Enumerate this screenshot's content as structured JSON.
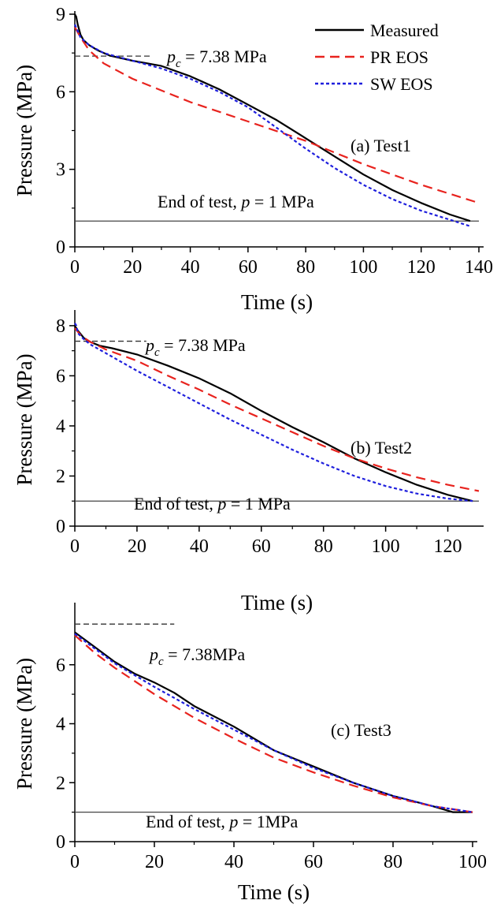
{
  "colors": {
    "measured": "#000000",
    "pr_eos": "#e8231e",
    "sw_eos": "#1f1fdd",
    "critical_line": "#333333",
    "end_line": "#444444"
  },
  "legend": {
    "placement": "top-right of panel (a)",
    "items": [
      {
        "label": "Measured",
        "color": "#000000",
        "dash": "solid"
      },
      {
        "label": "PR EOS",
        "color": "#e8231e",
        "dash": "long-dash"
      },
      {
        "label": "SW EOS",
        "color": "#1f1fdd",
        "dash": "short-dash"
      }
    ]
  },
  "chart_data": [
    {
      "type": "line",
      "panel_label": "(a) Test1",
      "xlabel": "Time (s)",
      "ylabel": "Pressure (MPa)",
      "xlim": [
        0,
        140
      ],
      "ylim": [
        0,
        9
      ],
      "xticks": [
        0,
        20,
        40,
        60,
        80,
        100,
        120,
        140
      ],
      "yticks": [
        0,
        3,
        6,
        9
      ],
      "critical": {
        "pre": "p",
        "sub": "c",
        "post": " = 7.38 MPa",
        "value": 7.38,
        "x_range": [
          0,
          27
        ]
      },
      "end_of_test": {
        "pre": "End of test, ",
        "italic": "p",
        "post": " = 1 MPa",
        "value": 1
      },
      "series": [
        {
          "name": "Measured",
          "x": [
            0,
            0.5,
            1,
            2,
            3,
            5,
            8,
            12,
            20,
            30,
            40,
            50,
            60,
            70,
            80,
            90,
            100,
            110,
            120,
            130,
            137
          ],
          "y": [
            9.0,
            8.9,
            8.6,
            8.2,
            8.0,
            7.8,
            7.6,
            7.4,
            7.2,
            7.0,
            6.6,
            6.1,
            5.5,
            4.9,
            4.2,
            3.5,
            2.8,
            2.2,
            1.7,
            1.25,
            1.0
          ]
        },
        {
          "name": "PR EOS",
          "x": [
            0,
            2,
            5,
            10,
            20,
            40,
            60,
            80,
            100,
            120,
            140
          ],
          "y": [
            8.5,
            8.1,
            7.6,
            7.1,
            6.5,
            5.6,
            4.85,
            4.1,
            3.2,
            2.4,
            1.7
          ]
        },
        {
          "name": "SW EOS",
          "x": [
            0,
            2,
            5,
            10,
            20,
            30,
            40,
            50,
            60,
            70,
            80,
            90,
            100,
            110,
            120,
            130,
            137
          ],
          "y": [
            8.6,
            8.1,
            7.8,
            7.5,
            7.2,
            6.9,
            6.5,
            6.0,
            5.4,
            4.6,
            3.8,
            3.05,
            2.4,
            1.85,
            1.4,
            1.05,
            0.8
          ]
        }
      ]
    },
    {
      "type": "line",
      "panel_label": "(b) Test2",
      "xlabel": "Time (s)",
      "ylabel": "Pressure (MPa)",
      "xlim": [
        0,
        130
      ],
      "ylim": [
        0,
        8.5
      ],
      "xticks": [
        0,
        20,
        40,
        60,
        80,
        100,
        120
      ],
      "yticks": [
        0,
        2,
        4,
        6,
        8
      ],
      "critical": {
        "pre": "p",
        "sub": "c",
        "post": " = 7.38 MPa",
        "value": 7.38,
        "x_range": [
          0,
          23
        ]
      },
      "end_of_test": {
        "pre": "End of test, ",
        "italic": "p",
        "post": " = 1 MPa",
        "value": 1
      },
      "series": [
        {
          "name": "Measured",
          "x": [
            0,
            1,
            3,
            5,
            8,
            12,
            20,
            30,
            40,
            50,
            60,
            70,
            80,
            90,
            100,
            110,
            120,
            128
          ],
          "y": [
            8.0,
            7.8,
            7.5,
            7.35,
            7.2,
            7.1,
            6.85,
            6.4,
            5.9,
            5.3,
            4.6,
            3.95,
            3.35,
            2.7,
            2.15,
            1.65,
            1.25,
            1.0
          ]
        },
        {
          "name": "PR EOS",
          "x": [
            0,
            2,
            5,
            10,
            20,
            30,
            40,
            50,
            60,
            70,
            80,
            90,
            100,
            110,
            120,
            130
          ],
          "y": [
            7.9,
            7.6,
            7.35,
            7.05,
            6.6,
            6.0,
            5.45,
            4.85,
            4.3,
            3.75,
            3.2,
            2.7,
            2.3,
            1.95,
            1.65,
            1.4
          ]
        },
        {
          "name": "SW EOS",
          "x": [
            0,
            0.5,
            1,
            3,
            5,
            10,
            20,
            30,
            40,
            50,
            60,
            70,
            80,
            90,
            100,
            110,
            120,
            128
          ],
          "y": [
            8.1,
            8.0,
            7.7,
            7.45,
            7.25,
            6.9,
            6.2,
            5.55,
            4.9,
            4.25,
            3.65,
            3.05,
            2.5,
            2.0,
            1.6,
            1.3,
            1.1,
            1.0
          ]
        }
      ]
    },
    {
      "type": "line",
      "panel_label": "(c) Test3",
      "xlabel": "Time (s)",
      "ylabel": "Pressure (MPa)",
      "xlim": [
        0,
        100
      ],
      "ylim": [
        0,
        8
      ],
      "xticks": [
        0,
        20,
        40,
        60,
        80,
        100
      ],
      "yticks": [
        0,
        2,
        4,
        6
      ],
      "critical": {
        "pre": "p",
        "sub": "c",
        "post": " = 7.38MPa",
        "value": 7.38,
        "x_range": [
          0,
          25
        ]
      },
      "end_of_test": {
        "pre": "End of test, ",
        "italic": "p",
        "post": " = 1MPa",
        "value": 1
      },
      "series": [
        {
          "name": "Measured",
          "x": [
            0,
            5,
            10,
            15,
            20,
            25,
            30,
            40,
            50,
            60,
            70,
            80,
            90,
            95,
            100
          ],
          "y": [
            7.1,
            6.6,
            6.1,
            5.7,
            5.4,
            5.05,
            4.6,
            3.9,
            3.1,
            2.55,
            2.0,
            1.55,
            1.2,
            1.0,
            1.0
          ]
        },
        {
          "name": "PR EOS",
          "x": [
            0,
            5,
            10,
            20,
            30,
            40,
            50,
            60,
            70,
            80,
            90,
            100
          ],
          "y": [
            7.0,
            6.4,
            5.9,
            5.0,
            4.2,
            3.5,
            2.85,
            2.35,
            1.9,
            1.5,
            1.2,
            1.0
          ]
        },
        {
          "name": "SW EOS",
          "x": [
            0,
            5,
            10,
            20,
            30,
            40,
            50,
            60,
            70,
            80,
            90,
            100
          ],
          "y": [
            7.05,
            6.55,
            6.05,
            5.25,
            4.5,
            3.8,
            3.1,
            2.5,
            2.0,
            1.55,
            1.2,
            1.0
          ]
        }
      ]
    }
  ]
}
